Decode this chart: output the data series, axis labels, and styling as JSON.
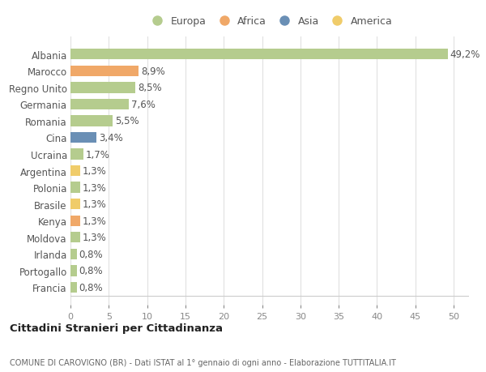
{
  "countries": [
    "Albania",
    "Marocco",
    "Regno Unito",
    "Germania",
    "Romania",
    "Cina",
    "Ucraina",
    "Argentina",
    "Polonia",
    "Brasile",
    "Kenya",
    "Moldova",
    "Irlanda",
    "Portogallo",
    "Francia"
  ],
  "values": [
    49.2,
    8.9,
    8.5,
    7.6,
    5.5,
    3.4,
    1.7,
    1.3,
    1.3,
    1.3,
    1.3,
    1.3,
    0.8,
    0.8,
    0.8
  ],
  "labels": [
    "49,2%",
    "8,9%",
    "8,5%",
    "7,6%",
    "5,5%",
    "3,4%",
    "1,7%",
    "1,3%",
    "1,3%",
    "1,3%",
    "1,3%",
    "1,3%",
    "0,8%",
    "0,8%",
    "0,8%"
  ],
  "continents": [
    "Europa",
    "Africa",
    "Europa",
    "Europa",
    "Europa",
    "Asia",
    "Europa",
    "America",
    "Europa",
    "America",
    "Africa",
    "Europa",
    "Europa",
    "Europa",
    "Europa"
  ],
  "continent_colors": {
    "Europa": "#b5cc8e",
    "Africa": "#f0a868",
    "Asia": "#6a8fb5",
    "America": "#f0cc6a"
  },
  "legend_order": [
    "Europa",
    "Africa",
    "Asia",
    "America"
  ],
  "title": "Cittadini Stranieri per Cittadinanza",
  "subtitle": "COMUNE DI CAROVIGNO (BR) - Dati ISTAT al 1° gennaio di ogni anno - Elaborazione TUTTITALIA.IT",
  "xlim": [
    0,
    52
  ],
  "xticks": [
    0,
    5,
    10,
    15,
    20,
    25,
    30,
    35,
    40,
    45,
    50
  ],
  "background_color": "#ffffff",
  "grid_color": "#e0e0e0",
  "bar_height": 0.65,
  "label_fontsize": 8.5,
  "ytick_fontsize": 8.5,
  "xtick_fontsize": 8
}
